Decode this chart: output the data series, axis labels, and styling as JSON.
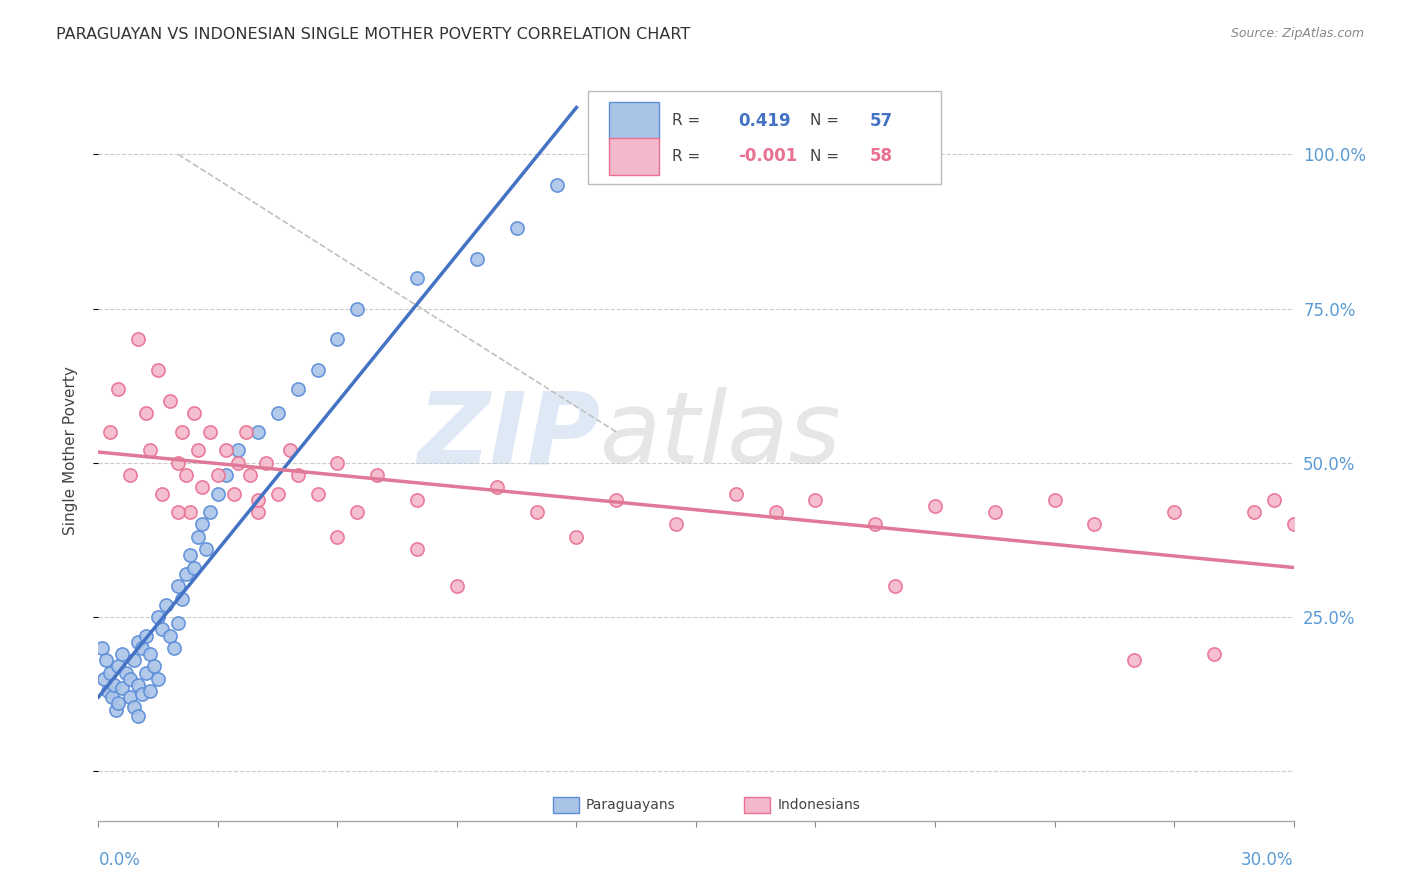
{
  "title": "PARAGUAYAN VS INDONESIAN SINGLE MOTHER POVERTY CORRELATION CHART",
  "source": "Source: ZipAtlas.com",
  "ylabel": "Single Mother Poverty",
  "legend_paraguayan": "Paraguayans",
  "legend_indonesian": "Indonesians",
  "r_paraguayan": "0.419",
  "n_paraguayan": "57",
  "r_indonesian": "-0.001",
  "n_indonesian": "58",
  "watermark_zip": "ZIP",
  "watermark_atlas": "atlas",
  "color_paraguayan_fill": "#aac4e8",
  "color_paraguayan_edge": "#5b8dd9",
  "color_indonesian_fill": "#f4b8cc",
  "color_indonesian_edge": "#e87090",
  "color_paraguayan_line": "#4472c4",
  "color_indonesian_line": "#e07898",
  "color_right_axis": "#5b9bd5",
  "color_grid": "#cccccc",
  "xmin": 0.0,
  "xmax": 30.0,
  "ymin": -8.0,
  "ymax": 112.0,
  "paraguayan_x": [
    0.1,
    0.15,
    0.2,
    0.25,
    0.3,
    0.35,
    0.4,
    0.45,
    0.5,
    0.5,
    0.6,
    0.6,
    0.7,
    0.8,
    0.8,
    0.9,
    0.9,
    1.0,
    1.0,
    1.0,
    1.1,
    1.1,
    1.2,
    1.2,
    1.3,
    1.3,
    1.4,
    1.5,
    1.5,
    1.6,
    1.7,
    1.8,
    1.9,
    2.0,
    2.0,
    2.1,
    2.2,
    2.3,
    2.4,
    2.5,
    2.6,
    2.7,
    2.8,
    3.0,
    3.2,
    3.5,
    4.0,
    4.5,
    5.0,
    5.5,
    6.0,
    6.5,
    8.0,
    9.5,
    10.5,
    11.5,
    13.0
  ],
  "paraguayan_y": [
    20.0,
    15.0,
    18.0,
    13.0,
    16.0,
    12.0,
    14.0,
    10.0,
    17.0,
    11.0,
    19.0,
    13.5,
    16.0,
    15.0,
    12.0,
    18.0,
    10.5,
    21.0,
    14.0,
    9.0,
    20.0,
    12.5,
    22.0,
    16.0,
    19.0,
    13.0,
    17.0,
    25.0,
    15.0,
    23.0,
    27.0,
    22.0,
    20.0,
    30.0,
    24.0,
    28.0,
    32.0,
    35.0,
    33.0,
    38.0,
    40.0,
    36.0,
    42.0,
    45.0,
    48.0,
    52.0,
    55.0,
    58.0,
    62.0,
    65.0,
    70.0,
    75.0,
    80.0,
    83.0,
    88.0,
    95.0,
    100.0
  ],
  "indonesian_x": [
    0.3,
    0.5,
    0.8,
    1.0,
    1.2,
    1.3,
    1.5,
    1.6,
    1.8,
    2.0,
    2.1,
    2.2,
    2.3,
    2.4,
    2.5,
    2.6,
    2.8,
    3.0,
    3.2,
    3.4,
    3.5,
    3.7,
    3.8,
    4.0,
    4.2,
    4.5,
    4.8,
    5.0,
    5.5,
    6.0,
    6.5,
    7.0,
    8.0,
    9.0,
    10.0,
    11.0,
    12.0,
    13.0,
    14.5,
    16.0,
    17.0,
    18.0,
    19.5,
    20.0,
    21.0,
    22.5,
    24.0,
    25.0,
    26.0,
    27.0,
    28.0,
    29.0,
    29.5,
    30.0,
    2.0,
    4.0,
    6.0,
    8.0
  ],
  "indonesian_y": [
    55.0,
    62.0,
    48.0,
    70.0,
    58.0,
    52.0,
    65.0,
    45.0,
    60.0,
    50.0,
    55.0,
    48.0,
    42.0,
    58.0,
    52.0,
    46.0,
    55.0,
    48.0,
    52.0,
    45.0,
    50.0,
    55.0,
    48.0,
    42.0,
    50.0,
    45.0,
    52.0,
    48.0,
    45.0,
    50.0,
    42.0,
    48.0,
    44.0,
    30.0,
    46.0,
    42.0,
    38.0,
    44.0,
    40.0,
    45.0,
    42.0,
    44.0,
    40.0,
    30.0,
    43.0,
    42.0,
    44.0,
    40.0,
    18.0,
    42.0,
    19.0,
    42.0,
    44.0,
    40.0,
    42.0,
    44.0,
    38.0,
    36.0
  ]
}
